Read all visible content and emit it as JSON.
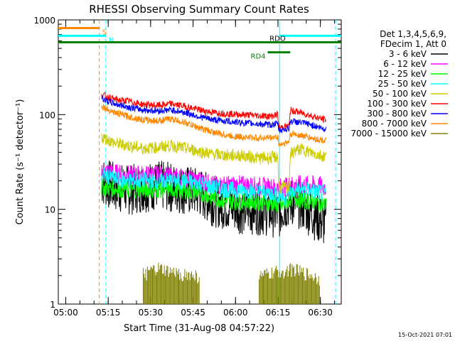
{
  "chart_data": {
    "type": "line",
    "title": "RHESSI Observing Summary Count Rates",
    "xlabel": "Start Time (31-Aug-08 04:57:22)",
    "ylabel": "Count Rate (s⁻¹ detector⁻¹)",
    "x_units": "minutes after 04:57:22 UT",
    "xlim": [
      0,
      100
    ],
    "ylim": [
      1,
      1000
    ],
    "yscale": "log",
    "x_ticks": [
      {
        "label": "05:00",
        "value": 2.63
      },
      {
        "label": "05:15",
        "value": 17.63
      },
      {
        "label": "05:30",
        "value": 32.63
      },
      {
        "label": "05:45",
        "value": 47.63
      },
      {
        "label": "06:00",
        "value": 62.63
      },
      {
        "label": "06:15",
        "value": 77.63
      },
      {
        "label": "06:30",
        "value": 92.63
      }
    ],
    "y_ticks": [
      {
        "label": "1",
        "value": 1
      },
      {
        "label": "10",
        "value": 10
      },
      {
        "label": "100",
        "value": 100
      },
      {
        "label": "1000",
        "value": 1000
      }
    ],
    "legend_header": [
      "Det 1,3,4,5,6,9,",
      "FDecim 1, Att 0"
    ],
    "legend_position": "right",
    "timestamp": "15-Oct-2021 07:01",
    "series": [
      {
        "name": "3 - 6 keV",
        "color": "#000000",
        "x": [
          15.3,
          20,
          25,
          30,
          35,
          40,
          45,
          50,
          55,
          60,
          65,
          70,
          75,
          78,
          80,
          82,
          84,
          86,
          88,
          90,
          93,
          94.7
        ],
        "y": [
          20,
          17,
          16,
          17,
          18,
          17,
          16,
          15,
          12,
          11,
          10,
          10,
          9.5,
          9,
          11,
          12,
          12,
          11,
          10,
          9,
          7.5,
          7
        ]
      },
      {
        "name": "6 - 12 keV",
        "color": "#ff00ff",
        "x": [
          15.3,
          20,
          25,
          30,
          35,
          40,
          45,
          50,
          55,
          60,
          65,
          70,
          75,
          78,
          80,
          82,
          84,
          86,
          88,
          90,
          93,
          94.7
        ],
        "y": [
          26,
          24,
          23,
          23,
          23,
          22,
          21,
          20,
          18,
          18,
          18,
          17.5,
          17,
          17,
          17,
          18,
          18,
          18,
          18,
          18,
          17.5,
          17
        ]
      },
      {
        "name": "12 - 25 keV",
        "color": "#00ff00",
        "x": [
          15.3,
          20,
          25,
          30,
          35,
          40,
          45,
          50,
          55,
          60,
          65,
          70,
          75,
          78,
          80,
          82,
          84,
          86,
          88,
          90,
          93,
          94.7
        ],
        "y": [
          17,
          16.5,
          16,
          16,
          16,
          16,
          15.5,
          15,
          13,
          12,
          12,
          12,
          11.5,
          11,
          11,
          13,
          13,
          12.5,
          12,
          12,
          11.5,
          11
        ]
      },
      {
        "name": "25 - 50 keV",
        "color": "#00ffff",
        "x": [
          15.3,
          20,
          25,
          30,
          35,
          40,
          45,
          50,
          55,
          60,
          65,
          70,
          75,
          78,
          80,
          82,
          84,
          86,
          88,
          90,
          93,
          94.7
        ],
        "y": [
          23,
          21,
          20,
          20,
          20,
          20,
          19.5,
          19,
          17,
          16,
          16,
          15.5,
          15,
          14,
          13,
          15,
          16,
          16,
          16,
          15.5,
          15,
          15
        ]
      },
      {
        "name": "50 - 100 keV",
        "color": "#cccc00",
        "x": [
          15.3,
          17,
          20,
          25,
          30,
          35,
          40,
          45,
          50,
          55,
          60,
          65,
          70,
          75,
          77.6,
          78,
          80,
          81.5,
          82,
          84,
          86,
          88,
          90,
          93,
          94.7
        ],
        "y": [
          58,
          55,
          50,
          47,
          44,
          45,
          47,
          44,
          41,
          38,
          37,
          37,
          35,
          35,
          36,
          17,
          17,
          17,
          38,
          42,
          43,
          41,
          39,
          37,
          36
        ]
      },
      {
        "name": "100 - 300 keV",
        "color": "#ff0000",
        "x": [
          15.3,
          17,
          20,
          25,
          30,
          35,
          40,
          45,
          50,
          55,
          60,
          65,
          70,
          75,
          77.6,
          78,
          80,
          81.5,
          82,
          84,
          86,
          88,
          90,
          93,
          94.7
        ],
        "y": [
          165,
          155,
          145,
          138,
          128,
          125,
          130,
          122,
          112,
          105,
          102,
          100,
          98,
          96,
          100,
          72,
          75,
          75,
          110,
          108,
          104,
          100,
          96,
          90,
          88
        ]
      },
      {
        "name": "300 - 800 keV",
        "color": "#0000ff",
        "x": [
          15.3,
          17,
          20,
          25,
          30,
          35,
          40,
          45,
          50,
          55,
          60,
          65,
          70,
          75,
          77.6,
          78,
          80,
          81.5,
          82,
          84,
          86,
          88,
          90,
          93,
          94.7
        ],
        "y": [
          150,
          140,
          130,
          120,
          112,
          110,
          112,
          105,
          95,
          88,
          85,
          82,
          80,
          78,
          80,
          68,
          70,
          71,
          85,
          84,
          82,
          80,
          77,
          72,
          70
        ]
      },
      {
        "name": "800 - 7000 keV",
        "color": "#ff8800",
        "x": [
          15.3,
          17,
          20,
          25,
          30,
          35,
          40,
          45,
          50,
          55,
          60,
          65,
          70,
          75,
          77.6,
          78,
          80,
          81.5,
          82,
          84,
          86,
          88,
          90,
          93,
          94.7
        ],
        "y": [
          125,
          115,
          105,
          95,
          88,
          86,
          90,
          82,
          72,
          65,
          60,
          58,
          57,
          57,
          58,
          48,
          50,
          51,
          62,
          62,
          60,
          58,
          56,
          54,
          53
        ]
      },
      {
        "name": "7000 - 15000 keV",
        "color": "#808000",
        "x": [
          30,
          35,
          40,
          45,
          50,
          71,
          74,
          77,
          80,
          83,
          86,
          89,
          92.5
        ],
        "y": [
          2.0,
          2.3,
          2.1,
          2.0,
          1.9,
          1.9,
          2.0,
          2.1,
          2.2,
          2.3,
          2.1,
          2.0,
          1.8
        ]
      }
    ],
    "attenuator_bars": [
      {
        "label": "S",
        "color": "#ff8800",
        "x0": 0,
        "x1": 14.5,
        "y": 820
      },
      {
        "label": "N",
        "color": "#00ffff",
        "x0": 0,
        "x1": 16.8,
        "y": 680
      },
      {
        "label": "",
        "color": "#00ffff",
        "x0": 78.2,
        "x1": 100,
        "y": 680
      },
      {
        "label": "",
        "color": "#008000",
        "x0": 0,
        "x1": 100,
        "y": 580
      },
      {
        "label": "RD4",
        "color": "#008000",
        "x0": 74,
        "x1": 82,
        "y": 455
      }
    ],
    "annotations": [
      {
        "text": "RDO",
        "x": 77.5,
        "y": 600
      }
    ],
    "vlines": [
      {
        "x": 14.5,
        "color": "#ff8800",
        "style": "dashed"
      },
      {
        "x": 16.8,
        "color": "#00ffff",
        "style": "dashed"
      },
      {
        "x": 78.2,
        "color": "#00ffff",
        "style": "solid"
      },
      {
        "x": 98.0,
        "color": "#00ffff",
        "style": "dashed"
      }
    ]
  }
}
